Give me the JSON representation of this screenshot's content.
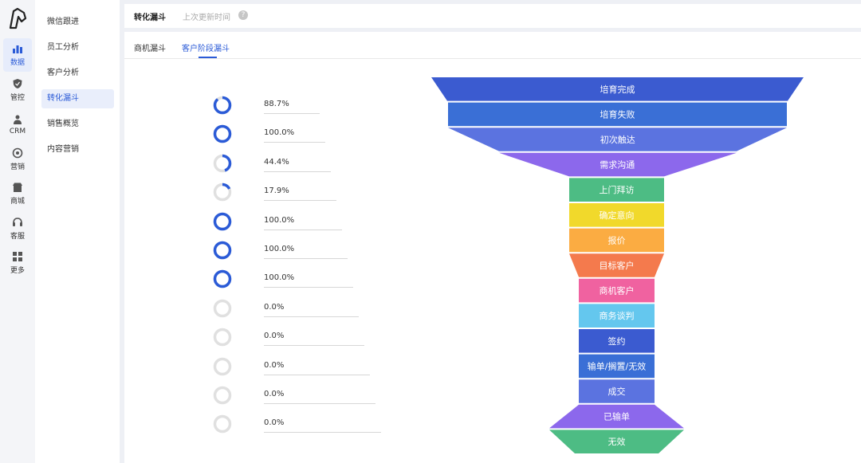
{
  "rail": [
    {
      "label": "数据",
      "icon": "bar-chart-icon",
      "active": true
    },
    {
      "label": "管控",
      "icon": "shield-icon",
      "active": false
    },
    {
      "label": "CRM",
      "icon": "people-icon",
      "active": false
    },
    {
      "label": "营销",
      "icon": "target-icon",
      "active": false
    },
    {
      "label": "商城",
      "icon": "store-icon",
      "active": false
    },
    {
      "label": "客服",
      "icon": "headset-icon",
      "active": false
    },
    {
      "label": "更多",
      "icon": "grid-icon",
      "active": false
    }
  ],
  "submenu": [
    {
      "label": "微信跟进",
      "active": false
    },
    {
      "label": "员工分析",
      "active": false
    },
    {
      "label": "客户分析",
      "active": false
    },
    {
      "label": "转化漏斗",
      "active": true
    },
    {
      "label": "销售概览",
      "active": false
    },
    {
      "label": "内容营销",
      "active": false
    }
  ],
  "header": {
    "title": "转化漏斗",
    "updated_label": "上次更新时间",
    "help_glyph": "?"
  },
  "tabs": [
    {
      "label": "商机漏斗",
      "active": false
    },
    {
      "label": "客户阶段漏斗",
      "active": true
    }
  ],
  "colors": {
    "accent": "#2b5bd7",
    "ring_track": "#e0e0e0"
  },
  "conversion_rates": [
    {
      "value": 88.7,
      "label": "88.7%"
    },
    {
      "value": 100.0,
      "label": "100.0%"
    },
    {
      "value": 44.4,
      "label": "44.4%"
    },
    {
      "value": 17.9,
      "label": "17.9%"
    },
    {
      "value": 100.0,
      "label": "100.0%"
    },
    {
      "value": 100.0,
      "label": "100.0%"
    },
    {
      "value": 100.0,
      "label": "100.0%"
    },
    {
      "value": 0.0,
      "label": "0.0%"
    },
    {
      "value": 0.0,
      "label": "0.0%"
    },
    {
      "value": 0.0,
      "label": "0.0%"
    },
    {
      "value": 0.0,
      "label": "0.0%"
    },
    {
      "value": 0.0,
      "label": "0.0%"
    }
  ],
  "chart_data": {
    "type": "funnel",
    "stages": [
      {
        "name": "培育完成",
        "color": "#3b5bd0"
      },
      {
        "name": "培育失败",
        "color": "#3a6fd6"
      },
      {
        "name": "初次触达",
        "color": "#5b73e0"
      },
      {
        "name": "需求沟通",
        "color": "#8c68ec"
      },
      {
        "name": "上门拜访",
        "color": "#4dbc84"
      },
      {
        "name": "确定意向",
        "color": "#f1d92b"
      },
      {
        "name": "报价",
        "color": "#fbac42"
      },
      {
        "name": "目标客户",
        "color": "#f47a4d"
      },
      {
        "name": "商机客户",
        "color": "#f062a0"
      },
      {
        "name": "商务谈判",
        "color": "#64c7ee"
      },
      {
        "name": "签约",
        "color": "#3b5bd0"
      },
      {
        "name": "输单/搁置/无效",
        "color": "#3a6fd6"
      },
      {
        "name": "成交",
        "color": "#5b73e0"
      },
      {
        "name": "已输单",
        "color": "#8c68ec"
      },
      {
        "name": "无效",
        "color": "#4dbc84"
      }
    ]
  }
}
